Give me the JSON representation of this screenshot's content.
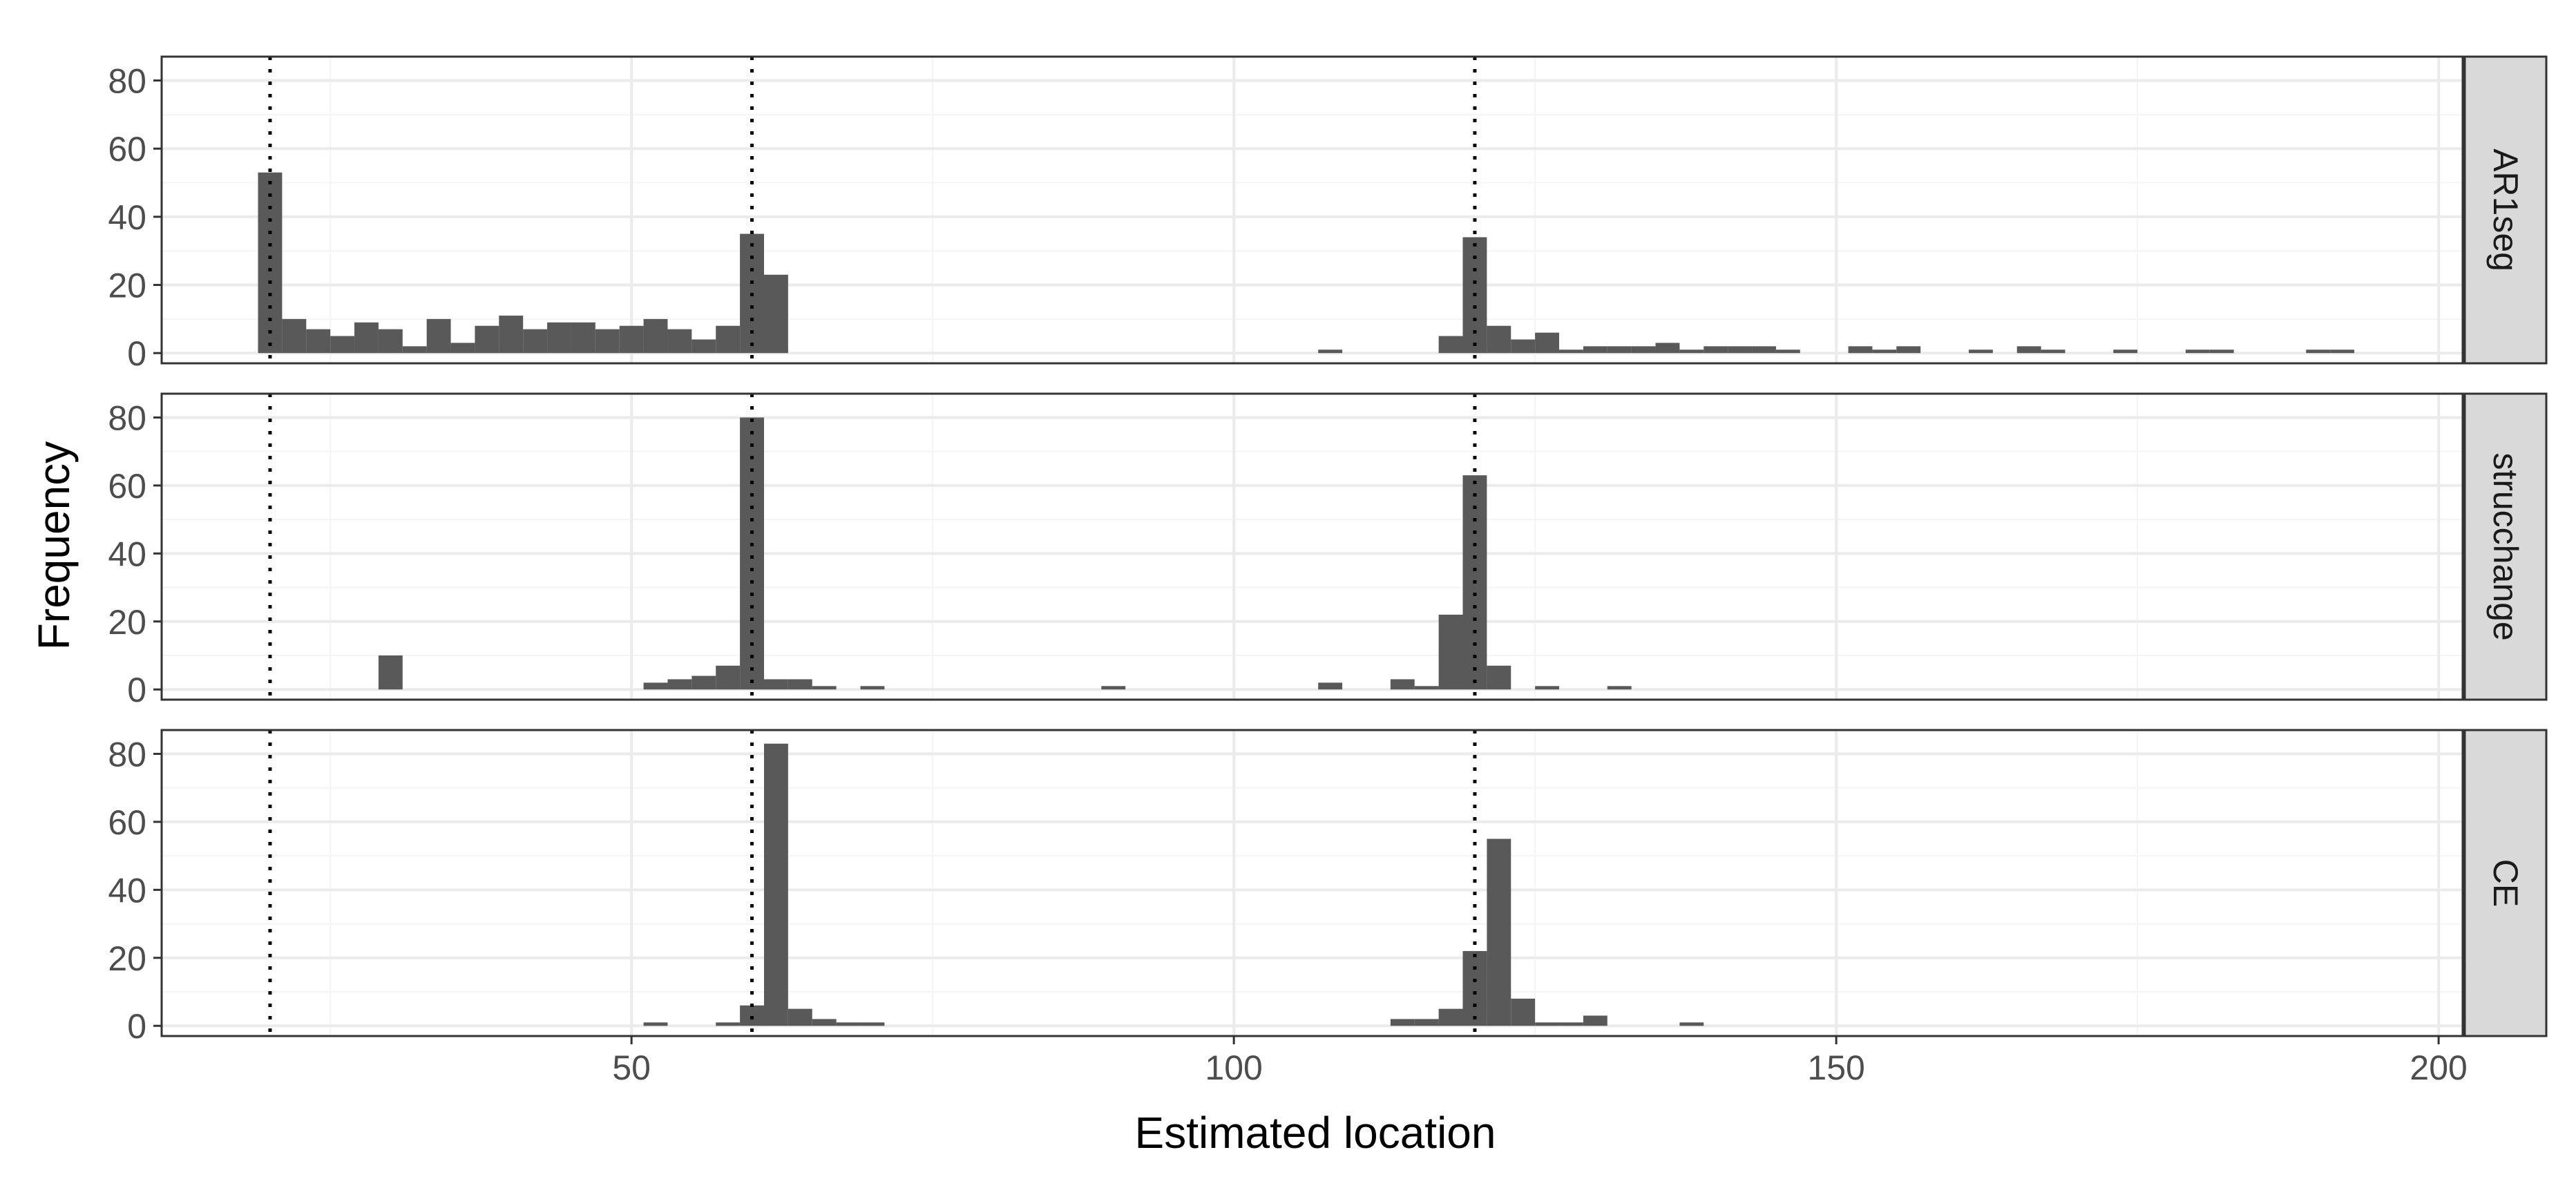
{
  "chart_data": {
    "type": "bar",
    "subtype": "faceted-histogram",
    "xlabel": "Estimated location",
    "ylabel": "Frequency",
    "xlim": [
      11,
      202
    ],
    "ylim": [
      -3,
      87
    ],
    "x_ticks": [
      50,
      100,
      150,
      200
    ],
    "y_ticks": [
      0,
      20,
      40,
      60,
      80
    ],
    "bin_width": 2,
    "reference_lines": [
      20,
      60,
      120
    ],
    "grid": true,
    "theme": "bw",
    "colors": {
      "bar": "#595959",
      "grid_major": "#ebebeb",
      "grid_minor": "#f5f5f5",
      "panel_border": "#333333",
      "strip_fill": "#d9d9d9",
      "reference_line": "#000000"
    },
    "panels": [
      {
        "name": "AR1seg",
        "x": [
          20,
          22,
          24,
          26,
          28,
          30,
          32,
          34,
          36,
          38,
          40,
          42,
          44,
          46,
          48,
          50,
          52,
          54,
          56,
          58,
          60,
          62,
          108,
          118,
          120,
          122,
          124,
          126,
          128,
          130,
          132,
          134,
          136,
          138,
          140,
          142,
          144,
          146,
          148,
          152,
          154,
          156,
          162,
          166,
          168,
          174,
          180,
          182,
          190,
          192
        ],
        "values": [
          53,
          10,
          7,
          5,
          9,
          7,
          2,
          10,
          3,
          8,
          11,
          7,
          9,
          9,
          7,
          8,
          10,
          7,
          4,
          8,
          35,
          23,
          1,
          5,
          34,
          8,
          4,
          6,
          1,
          2,
          2,
          2,
          3,
          1,
          2,
          2,
          2,
          1,
          0,
          2,
          1,
          2,
          1,
          2,
          1,
          1,
          1,
          1,
          1,
          1
        ]
      },
      {
        "name": "strucchange",
        "x": [
          30,
          52,
          54,
          56,
          58,
          60,
          62,
          64,
          66,
          70,
          90,
          108,
          114,
          116,
          118,
          120,
          122,
          126,
          132
        ],
        "values": [
          10,
          2,
          3,
          4,
          7,
          80,
          3,
          3,
          1,
          1,
          1,
          2,
          3,
          1,
          22,
          63,
          7,
          1,
          1
        ]
      },
      {
        "name": "CE",
        "x": [
          52,
          56,
          58,
          60,
          62,
          64,
          66,
          68,
          70,
          114,
          116,
          118,
          120,
          122,
          124,
          126,
          128,
          130,
          138
        ],
        "values": [
          1,
          0,
          1,
          6,
          83,
          5,
          2,
          1,
          1,
          2,
          2,
          5,
          22,
          55,
          8,
          1,
          1,
          3,
          1
        ]
      }
    ]
  }
}
